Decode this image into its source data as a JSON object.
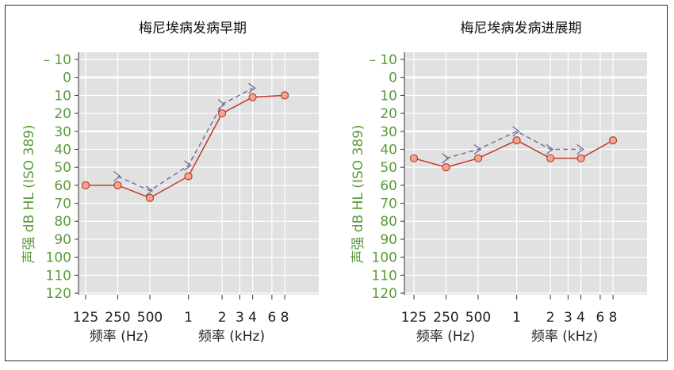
{
  "chart_data": [
    {
      "type": "line",
      "title": "梅尼埃病发病早期",
      "ylabel": "dB HL (ISO 389)",
      "ylabel_prefix": "声强",
      "ylim": [
        -10,
        120
      ],
      "yticks": [
        -10,
        0,
        10,
        20,
        30,
        40,
        50,
        60,
        70,
        80,
        90,
        100,
        110,
        120
      ],
      "ytick_labels": [
        "– 10",
        "0",
        "10",
        "20",
        "30",
        "40",
        "50",
        "60",
        "70",
        "80",
        "90",
        "100",
        "110",
        "120"
      ],
      "y_inverted": true,
      "xticks": [
        {
          "label": "125",
          "pos": 0
        },
        {
          "label": "250",
          "pos": 1
        },
        {
          "label": "500",
          "pos": 2
        },
        {
          "label": "1",
          "pos": 3.2
        },
        {
          "label": "2",
          "pos": 4.25
        },
        {
          "label": "3",
          "pos": 4.8
        },
        {
          "label": "4",
          "pos": 5.2
        },
        {
          "label": "6",
          "pos": 5.8
        },
        {
          "label": "8",
          "pos": 6.2
        }
      ],
      "xlabel_hz": "频率 (Hz)",
      "xlabel_khz": "频率 (kHz)",
      "grid": true,
      "series": [
        {
          "role": "air",
          "color": "#c0392b",
          "x": [
            0,
            1,
            2,
            3.2,
            4.25,
            5.2,
            6.2
          ],
          "y": [
            60,
            60,
            67,
            55,
            20,
            11,
            10
          ]
        },
        {
          "role": "bone",
          "color": "#6b6b9a",
          "x": [
            1,
            2,
            3.2,
            4.25,
            5.2
          ],
          "y": [
            55,
            63,
            49,
            15,
            6
          ]
        }
      ]
    },
    {
      "type": "line",
      "title": "梅尼埃病发病进展期",
      "ylabel": "dB HL (ISO 389)",
      "ylabel_prefix": "声强",
      "ylim": [
        -10,
        120
      ],
      "yticks": [
        -10,
        0,
        10,
        20,
        30,
        40,
        50,
        60,
        70,
        80,
        90,
        100,
        110,
        120
      ],
      "ytick_labels": [
        "– 10",
        "0",
        "10",
        "20",
        "30",
        "40",
        "50",
        "60",
        "70",
        "80",
        "90",
        "100",
        "110",
        "120"
      ],
      "y_inverted": true,
      "xticks": [
        {
          "label": "125",
          "pos": 0
        },
        {
          "label": "250",
          "pos": 1
        },
        {
          "label": "500",
          "pos": 2
        },
        {
          "label": "1",
          "pos": 3.2
        },
        {
          "label": "2",
          "pos": 4.25
        },
        {
          "label": "3",
          "pos": 4.8
        },
        {
          "label": "4",
          "pos": 5.2
        },
        {
          "label": "6",
          "pos": 5.8
        },
        {
          "label": "8",
          "pos": 6.2
        }
      ],
      "xlabel_hz": "频率 (Hz)",
      "xlabel_khz": "频率 (kHz)",
      "grid": true,
      "series": [
        {
          "role": "air",
          "color": "#c0392b",
          "x": [
            0,
            1,
            2,
            3.2,
            4.25,
            5.2,
            6.2
          ],
          "y": [
            45,
            50,
            45,
            35,
            45,
            45,
            35
          ]
        },
        {
          "role": "bone",
          "color": "#6b6b9a",
          "x": [
            1,
            2,
            3.2,
            4.25,
            5.2
          ],
          "y": [
            45,
            40,
            30,
            40,
            40
          ]
        }
      ]
    }
  ]
}
